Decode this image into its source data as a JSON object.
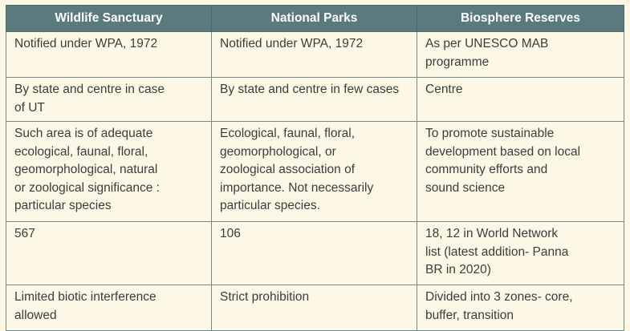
{
  "table": {
    "headers": [
      "Wildlife Sanctuary",
      "National Parks",
      "Biosphere Reserves"
    ],
    "rows": [
      [
        "Notified under WPA, 1972",
        "Notified under WPA, 1972",
        "As per UNESCO MAB\nprogramme"
      ],
      [
        "By state and centre in case\nof  UT",
        "By state and centre in few cases",
        "Centre"
      ],
      [
        "Such area is of adequate\necological, faunal, floral,\ngeomorphological, natural\nor  zoological significance :\nparticular species",
        "Ecological, faunal, floral,\ngeomorphological, or\nzoological  association of\nimportance. Not  necessarily\nparticular species.",
        "To promote sustainable\ndevelopment based on local\ncommunity efforts and\nsound  science"
      ],
      [
        "567",
        "106",
        "18,  12  in  World  Network\nlist  (latest addition- Panna\nBR in  2020)"
      ],
      [
        "Limited biotic interference\nallowed",
        "Strict prohibition",
        "Divided into 3 zones- core,\nbuffer, transition"
      ]
    ]
  },
  "colors": {
    "header_bg": "#5a7a7e",
    "header_text": "#ffffff",
    "body_bg": "#fdf8e6",
    "border": "#6f8a8d",
    "text": "#3c3c3c"
  }
}
